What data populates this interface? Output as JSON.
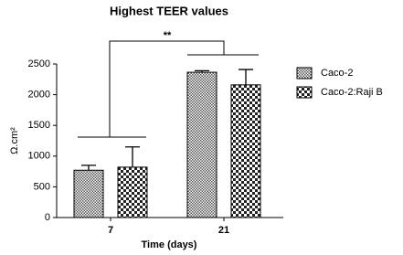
{
  "chart_data": {
    "type": "bar",
    "title": "Highest TEER values",
    "x_label": "Time (days)",
    "y_label": "Ω.cm²",
    "categories": [
      "7",
      "21"
    ],
    "series": [
      {
        "name": "Caco-2",
        "color": "#555555",
        "values": [
          770,
          2365
        ],
        "errors": [
          80,
          25
        ]
      },
      {
        "name": "Caco-2:Raji B",
        "color": "#222222",
        "values": [
          820,
          2160
        ],
        "errors": [
          330,
          250
        ]
      }
    ],
    "ylim": [
      0,
      2500
    ],
    "yticks": [
      0,
      500,
      1000,
      1500,
      2000,
      2500
    ],
    "annotation": "**",
    "legend": "right"
  }
}
